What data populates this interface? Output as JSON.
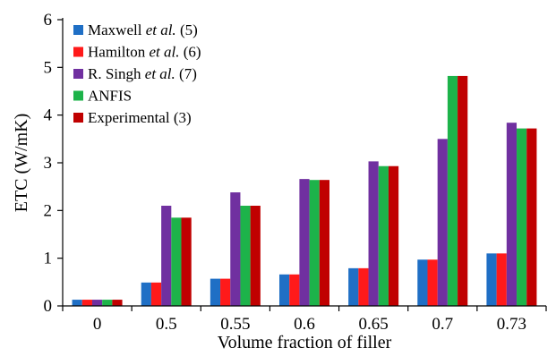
{
  "chart_data": {
    "type": "bar",
    "xlabel": "Volume fraction of filler",
    "ylabel": "ETC (W/mK)",
    "ylim": [
      0,
      6
    ],
    "yticks": [
      "0",
      "1",
      "2",
      "3",
      "4",
      "5",
      "6"
    ],
    "categories": [
      "0",
      "0.5",
      "0.55",
      "0.6",
      "0.65",
      "0.7",
      "0.73"
    ],
    "grid": false,
    "legend_position": "top-left",
    "series": [
      {
        "name": "Maxwell et al. (5)",
        "legend_parts": [
          {
            "t": "Maxwell ",
            "i": false
          },
          {
            "t": "et al.",
            "i": true
          },
          {
            "t": " (5)",
            "i": false
          }
        ],
        "color": "#1f6fc5",
        "values": [
          0.13,
          0.49,
          0.57,
          0.66,
          0.79,
          0.97,
          1.1
        ]
      },
      {
        "name": "Hamilton et al. (6)",
        "legend_parts": [
          {
            "t": "Hamilton ",
            "i": false
          },
          {
            "t": "et al.",
            "i": true
          },
          {
            "t": " (6)",
            "i": false
          }
        ],
        "color": "#ff1a1a",
        "values": [
          0.13,
          0.49,
          0.57,
          0.66,
          0.79,
          0.97,
          1.1
        ]
      },
      {
        "name": "R. Singh et al. (7)",
        "legend_parts": [
          {
            "t": "R. Singh ",
            "i": false
          },
          {
            "t": "et al.",
            "i": true
          },
          {
            "t": " (7)",
            "i": false
          }
        ],
        "color": "#7030a0",
        "values": [
          0.13,
          2.1,
          2.38,
          2.66,
          3.03,
          3.5,
          3.84
        ]
      },
      {
        "name": "ANFIS",
        "legend_parts": [
          {
            "t": "ANFIS",
            "i": false
          }
        ],
        "color": "#1db34a",
        "values": [
          0.13,
          1.85,
          2.1,
          2.64,
          2.93,
          4.82,
          3.72
        ]
      },
      {
        "name": "Experimental (3)",
        "legend_parts": [
          {
            "t": "Experimental (3)",
            "i": false
          }
        ],
        "color": "#c00000",
        "values": [
          0.13,
          1.85,
          2.1,
          2.64,
          2.93,
          4.82,
          3.72
        ]
      }
    ]
  }
}
